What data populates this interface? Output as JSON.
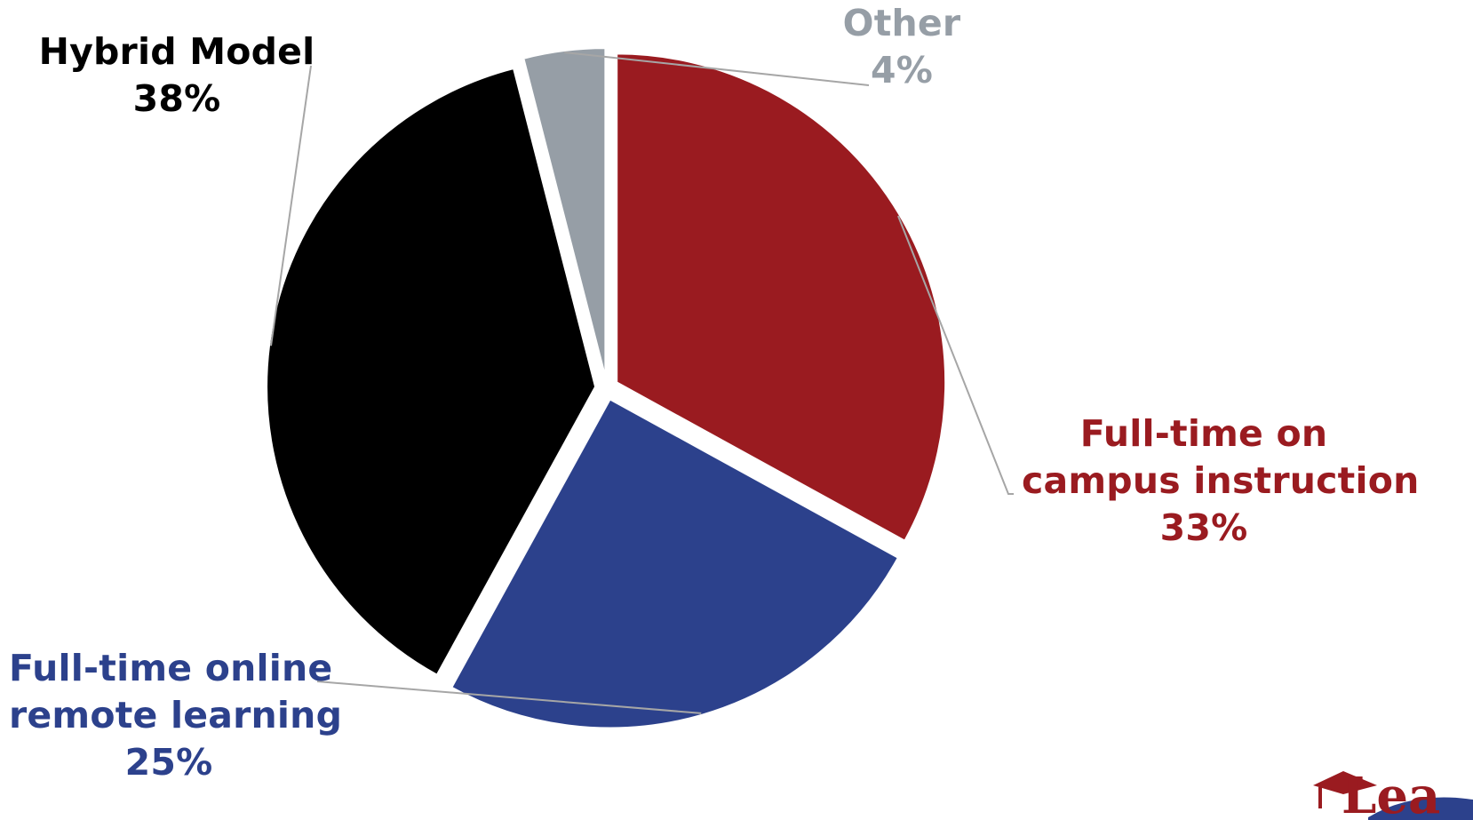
{
  "chart_data": {
    "type": "pie",
    "slices": [
      {
        "name": "Full-time on campus instruction",
        "value": 33,
        "value_label": "33%",
        "color": "#9a1b20",
        "label_lines": [
          "Full-time on",
          "campus instruction"
        ]
      },
      {
        "name": "Full-time online remote learning",
        "value": 25,
        "value_label": "25%",
        "color": "#2c418c",
        "label_lines": [
          "Full-time online",
          "remote learning"
        ]
      },
      {
        "name": "Hybrid Model",
        "value": 38,
        "value_label": "38%",
        "color": "#000000",
        "label_lines": [
          "Hybrid Model"
        ]
      },
      {
        "name": "Other",
        "value": 4,
        "value_label": "4%",
        "color": "#969ea6",
        "label_lines": [
          "Other"
        ]
      }
    ],
    "start_angle_deg": 0,
    "direction": "clockwise",
    "exploded": true,
    "legend": "none"
  },
  "logo": {
    "text": "Lea"
  }
}
